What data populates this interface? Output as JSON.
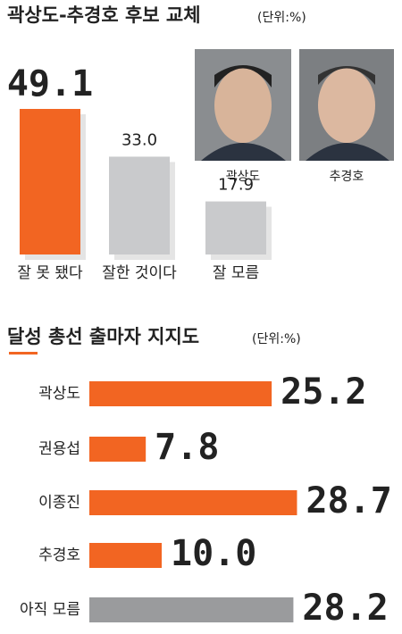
{
  "chart_data": [
    {
      "type": "bar",
      "title": "곽상도-추경호 후보 교체",
      "unit": "(단위:%)",
      "categories": [
        "잘 못 됐다",
        "잘한 것이다",
        "잘 모름"
      ],
      "values": [
        49.1,
        33.0,
        17.9
      ],
      "value_labels": [
        "49.1",
        "33.0",
        "17.9"
      ],
      "colors": [
        "#f26522",
        "#c9cacc",
        "#c9cacc"
      ],
      "photo_captions": [
        "곽상도",
        "추경호"
      ]
    },
    {
      "type": "hbar",
      "title": "달성 총선 출마자 지지도",
      "unit": "(단위:%)",
      "categories": [
        "곽상도",
        "권용섭",
        "이종진",
        "추경호",
        "아직 모름"
      ],
      "values": [
        25.2,
        7.8,
        28.7,
        10.0,
        28.2
      ],
      "value_labels": [
        "25.2",
        "7.8",
        "28.7",
        "10.0",
        "28.2"
      ],
      "colors": [
        "#f26522",
        "#f26522",
        "#f26522",
        "#f26522",
        "#9a9b9d"
      ]
    }
  ]
}
